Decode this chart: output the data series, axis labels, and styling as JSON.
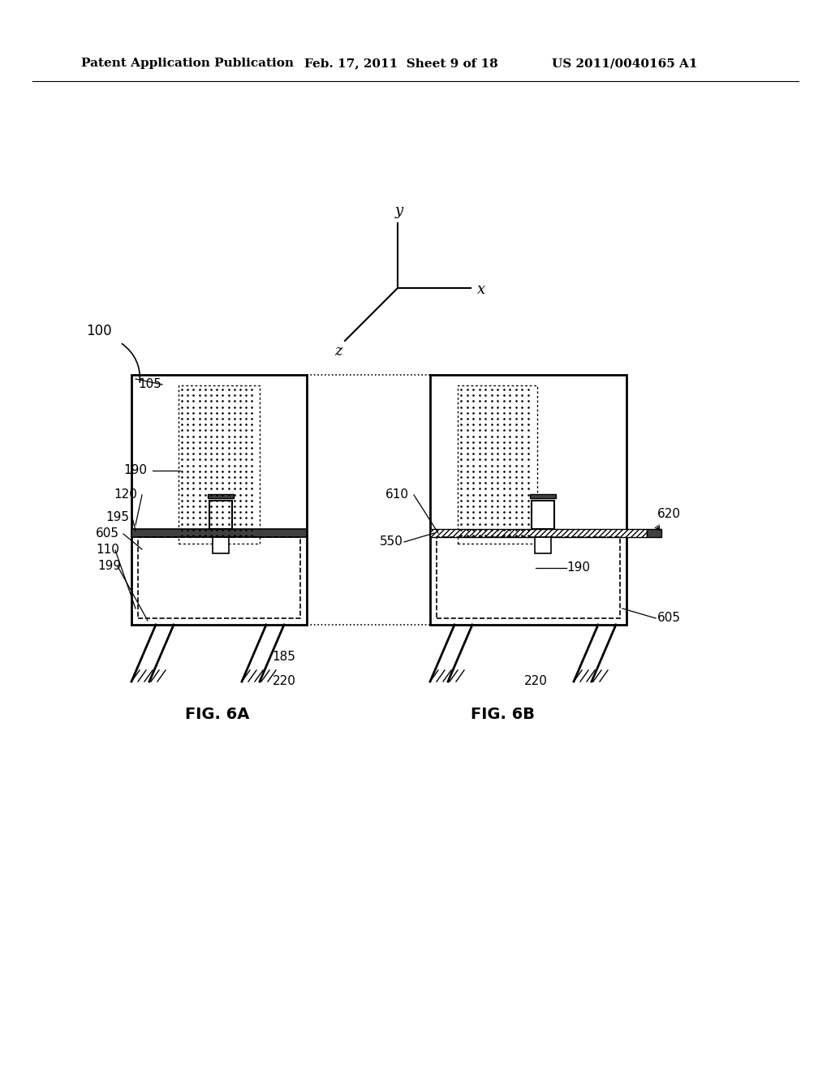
{
  "bg_color": "#ffffff",
  "header_text1": "Patent Application Publication",
  "header_text2": "Feb. 17, 2011  Sheet 9 of 18",
  "header_text3": "US 2011/0040165 A1",
  "fig_label_a": "FIG. 6A",
  "fig_label_b": "FIG. 6B",
  "axis_x": "x",
  "axis_y": "y",
  "axis_z": "z",
  "labels": {
    "100": "100",
    "105": "105",
    "110": "110",
    "120": "120",
    "185": "185",
    "190a": "190",
    "190b": "190",
    "195": "195",
    "199": "199",
    "220a": "220",
    "220b": "220",
    "550": "550",
    "605a": "605",
    "605b": "605",
    "610": "610",
    "620": "620"
  }
}
